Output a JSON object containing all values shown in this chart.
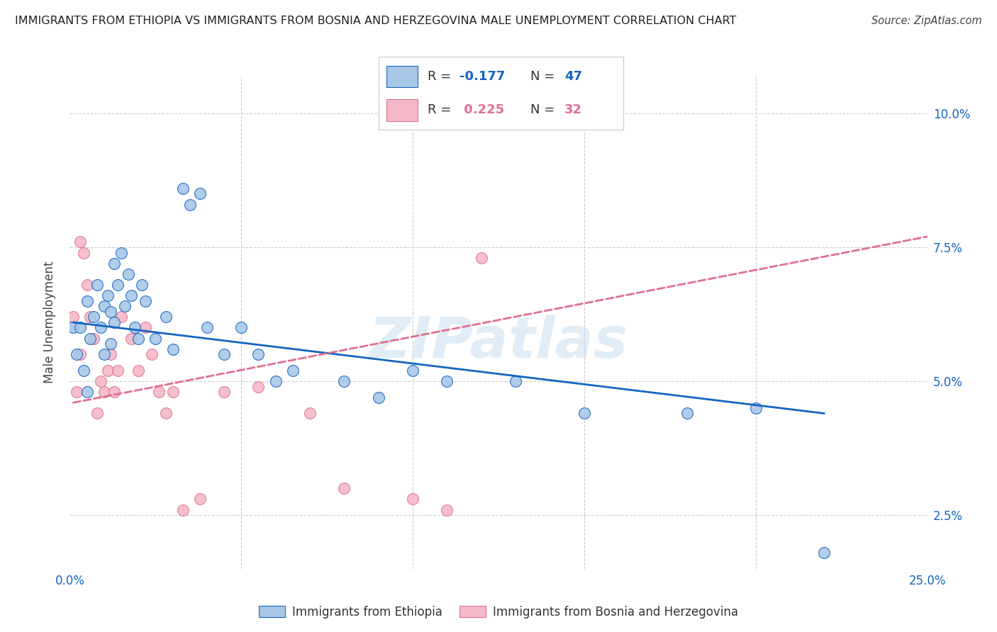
{
  "title": "IMMIGRANTS FROM ETHIOPIA VS IMMIGRANTS FROM BOSNIA AND HERZEGOVINA MALE UNEMPLOYMENT CORRELATION CHART",
  "source": "Source: ZipAtlas.com",
  "ylabel": "Male Unemployment",
  "xlim": [
    0.0,
    0.25
  ],
  "ylim": [
    0.015,
    0.107
  ],
  "xticks": [
    0.0,
    0.05,
    0.1,
    0.15,
    0.2,
    0.25
  ],
  "xtick_labels": [
    "0.0%",
    "",
    "",
    "",
    "",
    "25.0%"
  ],
  "yticks": [
    0.025,
    0.05,
    0.075,
    0.1
  ],
  "ytick_labels": [
    "2.5%",
    "5.0%",
    "7.5%",
    "10.0%"
  ],
  "color_ethiopia": "#a8c8e8",
  "color_bosnia": "#f5b8c8",
  "line_color_ethiopia": "#1565c0",
  "line_color_bosnia": "#e07090",
  "background_color": "#ffffff",
  "watermark": "ZIPatlas",
  "ethiopia_x": [
    0.001,
    0.002,
    0.003,
    0.004,
    0.005,
    0.005,
    0.006,
    0.007,
    0.008,
    0.009,
    0.01,
    0.01,
    0.011,
    0.012,
    0.012,
    0.013,
    0.013,
    0.014,
    0.015,
    0.016,
    0.017,
    0.018,
    0.019,
    0.02,
    0.021,
    0.022,
    0.025,
    0.028,
    0.03,
    0.033,
    0.035,
    0.038,
    0.04,
    0.045,
    0.05,
    0.055,
    0.06,
    0.065,
    0.08,
    0.09,
    0.1,
    0.11,
    0.13,
    0.15,
    0.18,
    0.2,
    0.22
  ],
  "ethiopia_y": [
    0.06,
    0.055,
    0.06,
    0.052,
    0.048,
    0.065,
    0.058,
    0.062,
    0.068,
    0.06,
    0.064,
    0.055,
    0.066,
    0.063,
    0.057,
    0.061,
    0.072,
    0.068,
    0.074,
    0.064,
    0.07,
    0.066,
    0.06,
    0.058,
    0.068,
    0.065,
    0.058,
    0.062,
    0.056,
    0.086,
    0.083,
    0.085,
    0.06,
    0.055,
    0.06,
    0.055,
    0.05,
    0.052,
    0.05,
    0.047,
    0.052,
    0.05,
    0.05,
    0.044,
    0.044,
    0.045,
    0.018
  ],
  "ethiopia_line_x": [
    0.001,
    0.22
  ],
  "ethiopia_line_y": [
    0.061,
    0.044
  ],
  "bosnia_x": [
    0.001,
    0.002,
    0.003,
    0.003,
    0.004,
    0.005,
    0.006,
    0.007,
    0.008,
    0.009,
    0.01,
    0.011,
    0.012,
    0.013,
    0.014,
    0.015,
    0.018,
    0.02,
    0.022,
    0.024,
    0.026,
    0.028,
    0.03,
    0.033,
    0.038,
    0.045,
    0.055,
    0.07,
    0.08,
    0.1,
    0.11,
    0.12
  ],
  "bosnia_y": [
    0.062,
    0.048,
    0.076,
    0.055,
    0.074,
    0.068,
    0.062,
    0.058,
    0.044,
    0.05,
    0.048,
    0.052,
    0.055,
    0.048,
    0.052,
    0.062,
    0.058,
    0.052,
    0.06,
    0.055,
    0.048,
    0.044,
    0.048,
    0.026,
    0.028,
    0.048,
    0.049,
    0.044,
    0.03,
    0.028,
    0.026,
    0.073
  ],
  "bosnia_line_x": [
    0.001,
    0.25
  ],
  "bosnia_line_y": [
    0.046,
    0.077
  ]
}
